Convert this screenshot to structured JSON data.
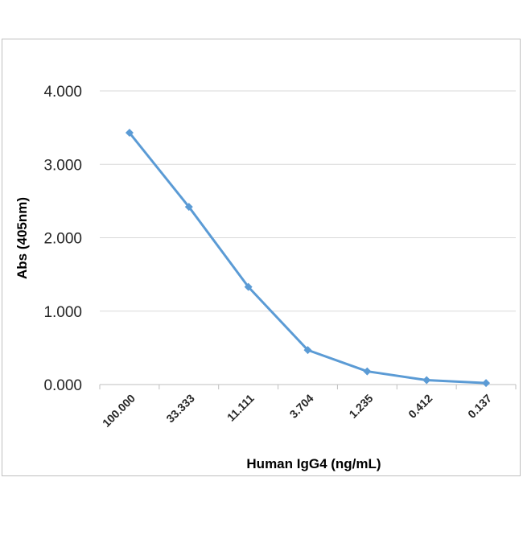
{
  "chart_data": {
    "type": "line",
    "title": "",
    "xlabel": "Human IgG4 (ng/mL)",
    "ylabel": "Abs (405nm)",
    "categories": [
      "100.000",
      "33.333",
      "11.111",
      "3.704",
      "1.235",
      "0.412",
      "0.137"
    ],
    "series": [
      {
        "values": [
          3.43,
          2.42,
          1.33,
          0.47,
          0.18,
          0.06,
          0.02
        ],
        "color": "#5b9bd5",
        "marker": "diamond"
      }
    ],
    "ylim": [
      0,
      4
    ],
    "yticks": [
      "0.000",
      "1.000",
      "2.000",
      "3.000",
      "4.000"
    ],
    "grid": true,
    "legend": "none"
  }
}
